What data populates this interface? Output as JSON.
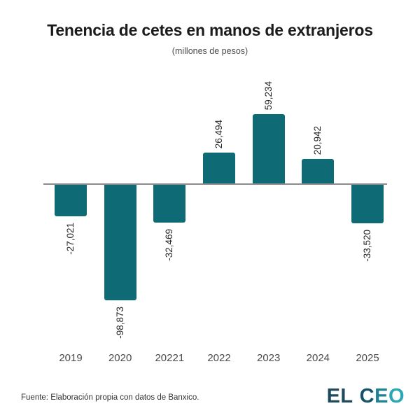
{
  "chart_data": {
    "type": "bar",
    "title": "Tenencia de cetes en manos de extranjeros",
    "subtitle": "(millones de pesos)",
    "categories": [
      "2019",
      "2020",
      "20221",
      "2022",
      "2023",
      "2024",
      "2025"
    ],
    "values": [
      -27021,
      -98873,
      -32469,
      26494,
      59234,
      20942,
      -33520
    ],
    "value_labels": [
      "-27,021",
      "-98,873",
      "-32,469",
      "26,494",
      "59,234",
      "20,942",
      "-33,520"
    ],
    "value_label_rotation_deg": 90,
    "bar_color": "#0e6a75",
    "axis_color": "#8c8c8c",
    "ylim": [
      -110000,
      70000
    ],
    "grid": false,
    "legend": "none"
  },
  "footer": {
    "source": "Fuente: Elaboración propia con datos de Banxico.",
    "logo_text": "EL CEO",
    "logo_letter_colors": [
      "#1d4a5f",
      "#1d4a5f",
      "#16536b",
      "#1b8494",
      "#2aa7b5"
    ]
  }
}
